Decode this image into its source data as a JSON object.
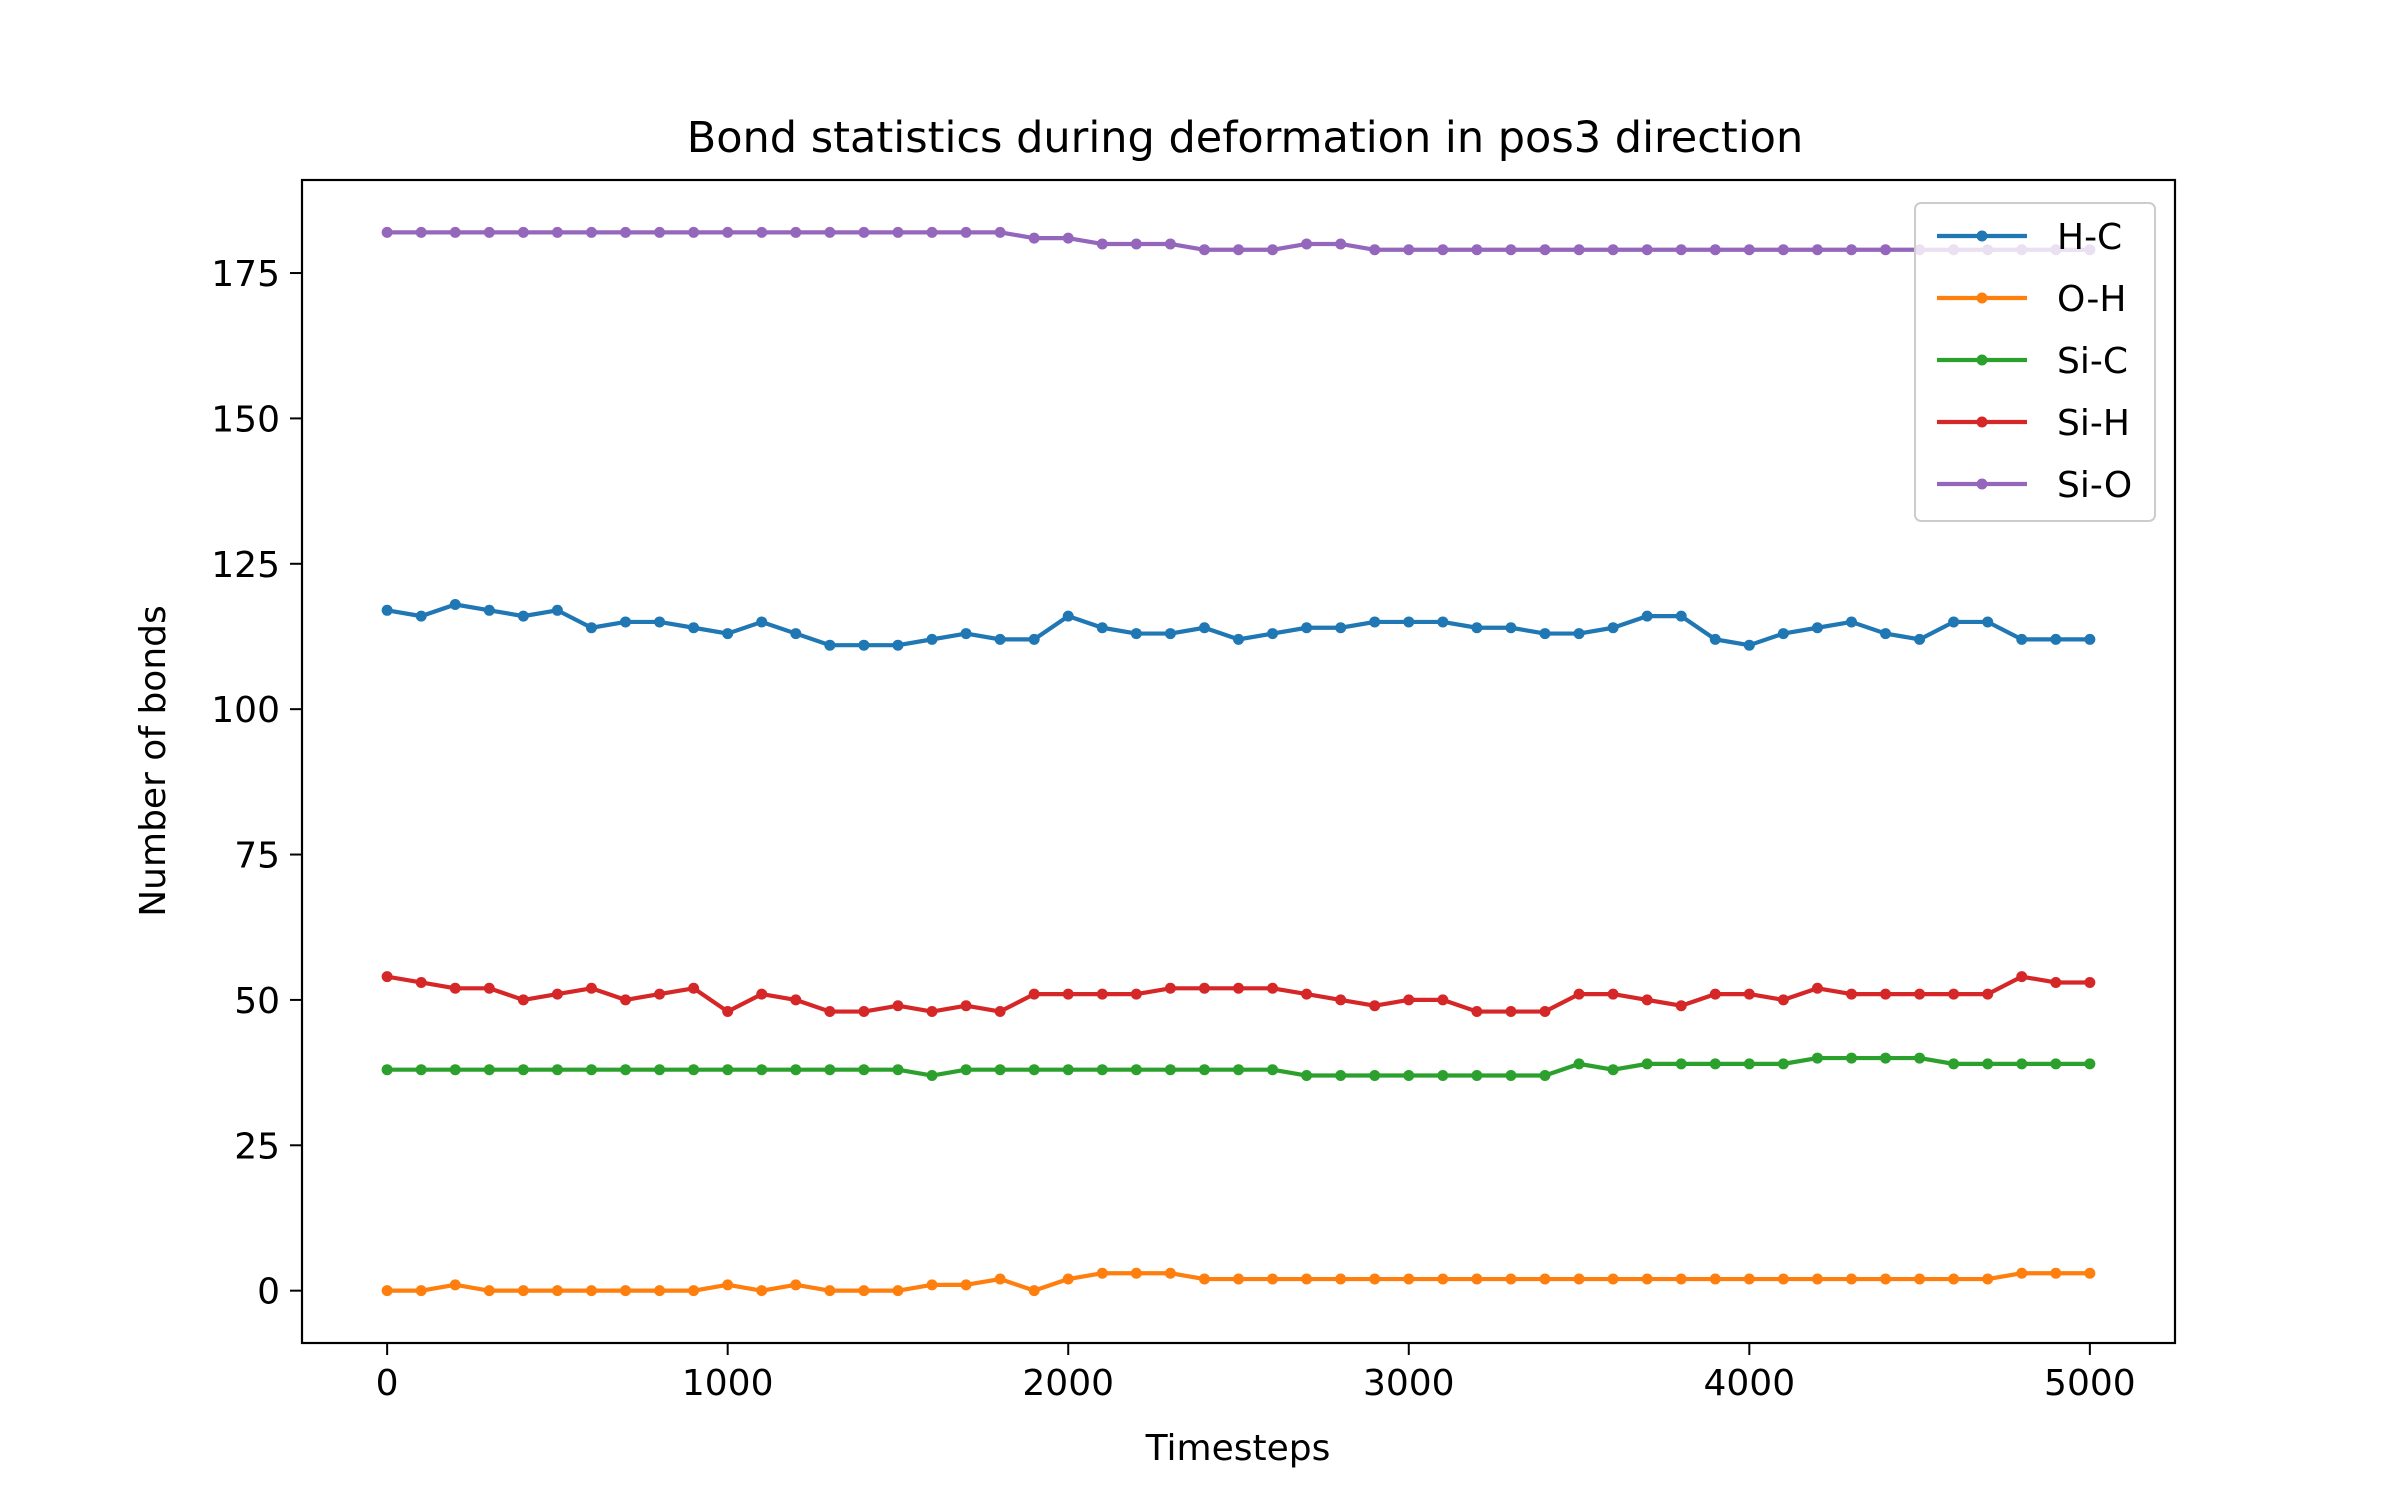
{
  "chart_data": {
    "type": "line",
    "title": "Bond statistics during deformation in pos3 direction",
    "xlabel": "Timesteps",
    "ylabel": "Number of bonds",
    "xlim": [
      -250,
      5250
    ],
    "ylim": [
      -9,
      191
    ],
    "xticks": [
      0,
      1000,
      2000,
      3000,
      4000,
      5000
    ],
    "yticks": [
      0,
      25,
      50,
      75,
      100,
      125,
      150,
      175
    ],
    "grid": false,
    "legend_position": "top-right",
    "x": [
      0,
      100,
      200,
      300,
      400,
      500,
      600,
      700,
      800,
      900,
      1000,
      1100,
      1200,
      1300,
      1400,
      1500,
      1600,
      1700,
      1800,
      1900,
      2000,
      2100,
      2200,
      2300,
      2400,
      2500,
      2600,
      2700,
      2800,
      2900,
      3000,
      3100,
      3200,
      3300,
      3400,
      3500,
      3600,
      3700,
      3800,
      3900,
      4000,
      4100,
      4200,
      4300,
      4400,
      4500,
      4600,
      4700,
      4800,
      4900,
      5000
    ],
    "series": [
      {
        "name": "H-C",
        "color": "#1f77b4",
        "values": [
          117,
          116,
          118,
          117,
          116,
          117,
          114,
          115,
          115,
          114,
          113,
          115,
          113,
          111,
          111,
          111,
          112,
          113,
          112,
          112,
          116,
          114,
          113,
          113,
          114,
          112,
          113,
          114,
          114,
          115,
          115,
          115,
          114,
          114,
          113,
          113,
          114,
          116,
          116,
          112,
          111,
          113,
          114,
          115,
          113,
          112,
          115,
          115,
          112,
          112,
          112
        ]
      },
      {
        "name": "O-H",
        "color": "#ff7f0e",
        "values": [
          0,
          0,
          1,
          0,
          0,
          0,
          0,
          0,
          0,
          0,
          1,
          0,
          1,
          0,
          0,
          0,
          1,
          1,
          2,
          0,
          2,
          3,
          3,
          3,
          2,
          2,
          2,
          2,
          2,
          2,
          2,
          2,
          2,
          2,
          2,
          2,
          2,
          2,
          2,
          2,
          2,
          2,
          2,
          2,
          2,
          2,
          2,
          2,
          3,
          3,
          3
        ]
      },
      {
        "name": "Si-C",
        "color": "#2ca02c",
        "values": [
          38,
          38,
          38,
          38,
          38,
          38,
          38,
          38,
          38,
          38,
          38,
          38,
          38,
          38,
          38,
          38,
          37,
          38,
          38,
          38,
          38,
          38,
          38,
          38,
          38,
          38,
          38,
          37,
          37,
          37,
          37,
          37,
          37,
          37,
          37,
          39,
          38,
          39,
          39,
          39,
          39,
          39,
          40,
          40,
          40,
          40,
          39,
          39,
          39,
          39,
          39
        ]
      },
      {
        "name": "Si-H",
        "color": "#d62728",
        "values": [
          54,
          53,
          52,
          52,
          50,
          51,
          52,
          50,
          51,
          52,
          48,
          51,
          50,
          48,
          48,
          49,
          48,
          49,
          48,
          51,
          51,
          51,
          51,
          52,
          52,
          52,
          52,
          51,
          50,
          49,
          50,
          50,
          48,
          48,
          48,
          51,
          51,
          50,
          49,
          51,
          51,
          50,
          52,
          51,
          51,
          51,
          51,
          51,
          54,
          53,
          53
        ]
      },
      {
        "name": "Si-O",
        "color": "#9467bd",
        "values": [
          182,
          182,
          182,
          182,
          182,
          182,
          182,
          182,
          182,
          182,
          182,
          182,
          182,
          182,
          182,
          182,
          182,
          182,
          182,
          181,
          181,
          180,
          180,
          180,
          179,
          179,
          179,
          180,
          180,
          179,
          179,
          179,
          179,
          179,
          179,
          179,
          179,
          179,
          179,
          179,
          179,
          179,
          179,
          179,
          179,
          179,
          179,
          179,
          179,
          179,
          179
        ]
      }
    ]
  }
}
